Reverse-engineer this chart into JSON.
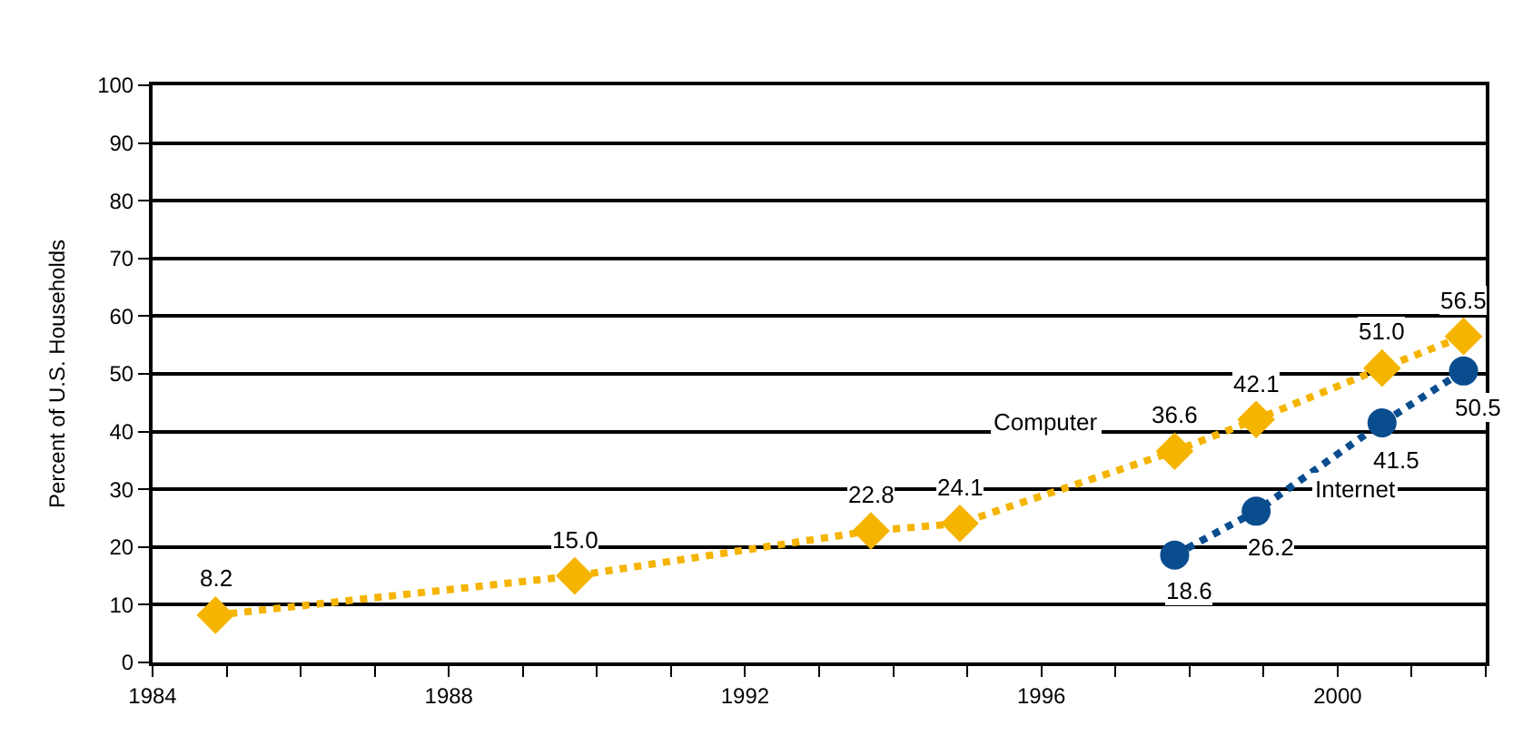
{
  "chart_data": {
    "type": "line",
    "ylabel": "Percent of U.S. Households",
    "xlim": [
      1984,
      2002
    ],
    "xticks": [
      1984,
      {
        "value": 1985,
        "label": null
      },
      {
        "value": 1986,
        "label": null
      },
      {
        "value": 1987,
        "label": null
      },
      1988,
      {
        "value": 1989,
        "label": null
      },
      {
        "value": 1990,
        "label": null
      },
      {
        "value": 1991,
        "label": null
      },
      1992,
      {
        "value": 1993,
        "label": null
      },
      {
        "value": 1994,
        "label": null
      },
      {
        "value": 1995,
        "label": null
      },
      1996,
      {
        "value": 1997,
        "label": null
      },
      {
        "value": 1998,
        "label": null
      },
      {
        "value": 1999,
        "label": null
      },
      2000,
      {
        "value": 2001,
        "label": null
      },
      {
        "value": 2002,
        "label": null
      }
    ],
    "ylim": [
      0,
      100
    ],
    "yticks": [
      0,
      10,
      20,
      30,
      40,
      50,
      60,
      70,
      80,
      90,
      100
    ],
    "grid": "y",
    "legend": false,
    "line_style": "dotted",
    "series": [
      {
        "name": "Computer",
        "color": "#f5b400",
        "marker": "diamond",
        "x": [
          1984.85,
          1989.7,
          1993.7,
          1994.9,
          1997.8,
          1998.9,
          2000.6,
          2001.7
        ],
        "values": [
          8.2,
          15.0,
          22.8,
          24.1,
          36.6,
          42.1,
          51.0,
          56.5
        ],
        "value_labels": [
          "8.2",
          "15.0",
          "22.8",
          "24.1",
          "36.6",
          "42.1",
          "51.0",
          "56.5"
        ]
      },
      {
        "name": "Internet",
        "color": "#0a4d8f",
        "marker": "circle",
        "x": [
          1997.8,
          1998.9,
          2000.6,
          2001.7
        ],
        "values": [
          18.6,
          26.2,
          41.5,
          50.5
        ],
        "value_labels": [
          "18.6",
          "26.2",
          "41.5",
          "50.5"
        ]
      }
    ]
  }
}
